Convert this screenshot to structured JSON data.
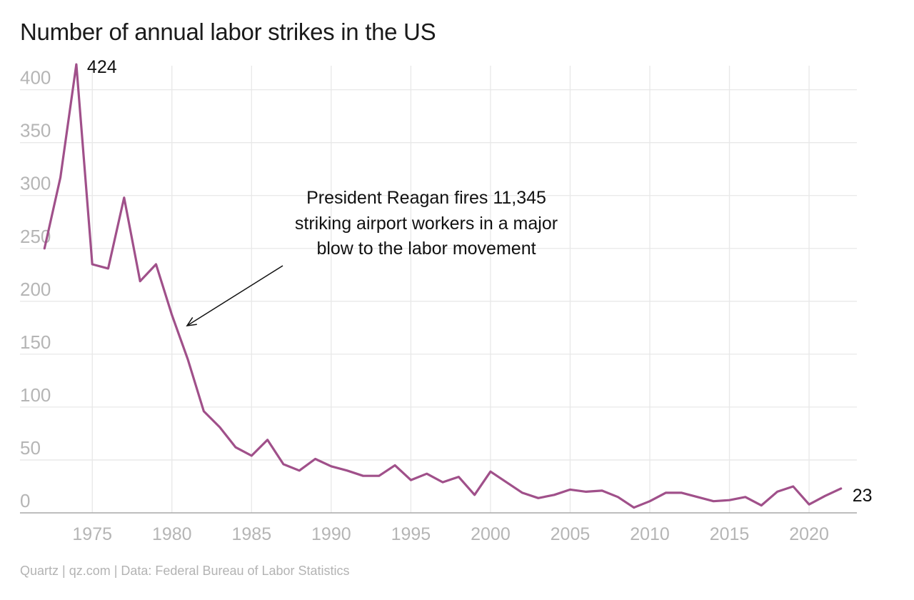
{
  "chart_data": {
    "type": "line",
    "title": "Number of annual labor strikes in the US",
    "source": "Quartz | qz.com | Data: Federal Bureau of Labor Statistics",
    "xlabel": "",
    "ylabel": "",
    "ylim": [
      0,
      420
    ],
    "xlim": [
      1971,
      2023
    ],
    "grid": true,
    "yticks": [
      "0",
      "50",
      "100",
      "150",
      "200",
      "250",
      "300",
      "350",
      "400"
    ],
    "xticks": [
      "1975",
      "1980",
      "1985",
      "1990",
      "1995",
      "2000",
      "2005",
      "2010",
      "2015",
      "2020"
    ],
    "series": [
      {
        "color": "#a0508a",
        "x": [
          1972,
          1973,
          1974,
          1975,
          1976,
          1977,
          1978,
          1979,
          1980,
          1981,
          1982,
          1983,
          1984,
          1985,
          1986,
          1987,
          1988,
          1989,
          1990,
          1991,
          1992,
          1993,
          1994,
          1995,
          1996,
          1997,
          1998,
          1999,
          2000,
          2001,
          2002,
          2003,
          2004,
          2005,
          2006,
          2007,
          2008,
          2009,
          2010,
          2011,
          2012,
          2013,
          2014,
          2015,
          2016,
          2017,
          2018,
          2019,
          2020,
          2021,
          2022
        ],
        "values": [
          250,
          317,
          424,
          235,
          231,
          298,
          219,
          235,
          187,
          145,
          96,
          81,
          62,
          54,
          69,
          46,
          40,
          51,
          44,
          40,
          35,
          35,
          45,
          31,
          37,
          29,
          34,
          17,
          39,
          29,
          19,
          14,
          17,
          22,
          20,
          21,
          15,
          5,
          11,
          19,
          19,
          15,
          11,
          12,
          15,
          7,
          20,
          25,
          8,
          16,
          23
        ]
      }
    ],
    "labels": {
      "peak": "424",
      "last": "23"
    },
    "annotation": {
      "lines": [
        "President Reagan fires 11,345",
        "striking airport workers in a major",
        "blow to the labor movement"
      ],
      "x": 1980.5,
      "y": 185
    }
  }
}
